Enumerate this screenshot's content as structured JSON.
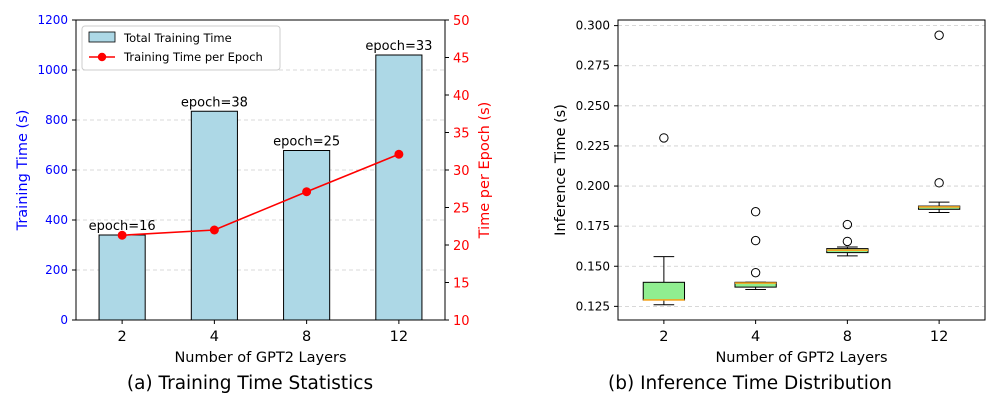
{
  "chart_data": [
    {
      "type": "bar",
      "caption": "(a) Training Time Statistics",
      "xlabel": "Number of GPT2 Layers",
      "ylabel": "Training Time (s)",
      "y2label": "Time per Epoch (s)",
      "categories": [
        "2",
        "4",
        "8",
        "12"
      ],
      "ylim": [
        0,
        1200
      ],
      "y2lim": [
        10,
        50
      ],
      "yticks": [
        "0",
        "200",
        "400",
        "600",
        "800",
        "1000",
        "1200"
      ],
      "y2ticks": [
        "10",
        "15",
        "20",
        "25",
        "30",
        "35",
        "40",
        "45",
        "50"
      ],
      "grid": true,
      "legend_position": "top-left",
      "series": [
        {
          "name": "Total Training Time",
          "kind": "bar",
          "axis": "left",
          "values": [
            340,
            835,
            678,
            1060
          ],
          "labels": [
            "epoch=16",
            "epoch=38",
            "epoch=25",
            "epoch=33"
          ],
          "color": "#add8e6"
        },
        {
          "name": "Training Time per Epoch",
          "kind": "line",
          "axis": "right",
          "values": [
            21.3,
            22.0,
            27.1,
            32.1
          ],
          "color": "#ff0000"
        }
      ],
      "colors": {
        "left_axis": "#0000ff",
        "right_axis": "#ff0000"
      }
    },
    {
      "type": "box",
      "caption": "(b) Inference Time Distribution",
      "xlabel": "Number of GPT2 Layers",
      "ylabel": "Inference Time (s)",
      "categories": [
        "2",
        "4",
        "8",
        "12"
      ],
      "ylim": [
        0.1165,
        0.3035
      ],
      "yticks": [
        "0.125",
        "0.150",
        "0.175",
        "0.200",
        "0.225",
        "0.250",
        "0.275",
        "0.300"
      ],
      "grid": true,
      "boxes": [
        {
          "whisker_low": 0.126,
          "q1": 0.129,
          "median": 0.129,
          "q3": 0.14,
          "whisker_high": 0.156,
          "outliers": [
            0.23
          ],
          "color": "#90ee90"
        },
        {
          "whisker_low": 0.1355,
          "q1": 0.137,
          "median": 0.1395,
          "q3": 0.14,
          "whisker_high": 0.14,
          "outliers": [
            0.146,
            0.166,
            0.184
          ],
          "color": "#90ee90"
        },
        {
          "whisker_low": 0.1565,
          "q1": 0.1585,
          "median": 0.16,
          "q3": 0.161,
          "whisker_high": 0.162,
          "outliers": [
            0.1655,
            0.176
          ],
          "color": "#90ee90"
        },
        {
          "whisker_low": 0.1835,
          "q1": 0.1855,
          "median": 0.187,
          "q3": 0.1875,
          "whisker_high": 0.19,
          "outliers": [
            0.202,
            0.294
          ],
          "color": "#90ee90"
        }
      ],
      "colors": {
        "median": "#f5a623",
        "median_overlay": "#c8b84a"
      }
    }
  ]
}
